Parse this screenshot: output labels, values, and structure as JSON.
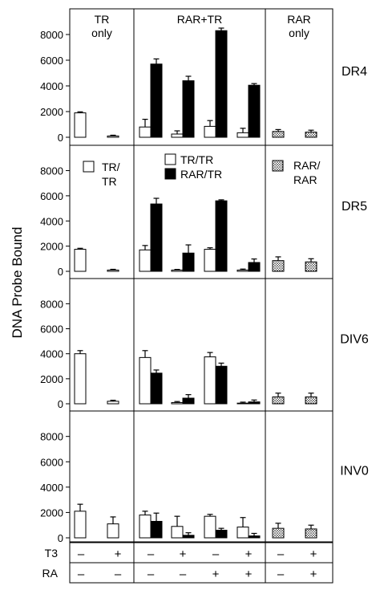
{
  "chart_data": {
    "type": "bar",
    "ylabel": "DNA Probe Bound",
    "ylim": [
      0,
      9500
    ],
    "yticks": [
      0,
      2000,
      4000,
      6000,
      8000
    ],
    "yticklabels": [
      "0",
      "2000",
      "4000",
      "6000",
      "8000"
    ],
    "groups": [
      "TR only",
      "RAR+TR",
      "RAR only"
    ],
    "group_labels": [
      {
        "line1": "TR",
        "line2": "only"
      },
      {
        "line1": "RAR+TR",
        "line2": ""
      },
      {
        "line1": "RAR",
        "line2": "only"
      }
    ],
    "conditions": {
      "row_labels": [
        "T3",
        "RA"
      ],
      "T3": [
        "–",
        "+",
        "–",
        "+",
        "–",
        "+",
        "–",
        "+"
      ],
      "RA": [
        "–",
        "–",
        "–",
        "–",
        "+",
        "+",
        "–",
        "+"
      ]
    },
    "legend": {
      "tr_tr_single": "TR/\nTR",
      "tr_tr": "TR/TR",
      "rar_tr": "RAR/TR",
      "rar_rar": "RAR/\nRAR"
    },
    "series_colors": {
      "TR/TR": "#ffffff",
      "RAR/TR": "#000000",
      "RAR/RAR": "dotted"
    },
    "panels": [
      {
        "label": "DR4",
        "tr_only": [
          [
            1900,
            80
          ],
          [
            100,
            60
          ]
        ],
        "rar_tr": [
          {
            "TR/TR": [
              800,
              600
            ],
            "RAR/TR": [
              5700,
              400
            ]
          },
          {
            "TR/TR": [
              250,
              250
            ],
            "RAR/TR": [
              4400,
              350
            ]
          },
          {
            "TR/TR": [
              850,
              450
            ],
            "RAR/TR": [
              8300,
              200
            ]
          },
          {
            "TR/TR": [
              350,
              350
            ],
            "RAR/TR": [
              4050,
              130
            ]
          }
        ],
        "rar_only": [
          [
            450,
            150
          ],
          [
            400,
            150
          ]
        ]
      },
      {
        "label": "DR5",
        "tr_only": [
          [
            1750,
            80
          ],
          [
            100,
            60
          ]
        ],
        "rar_tr": [
          {
            "TR/TR": [
              1700,
              350
            ],
            "RAR/TR": [
              5350,
              450
            ]
          },
          {
            "TR/TR": [
              100,
              50
            ],
            "RAR/TR": [
              1450,
              650
            ]
          },
          {
            "TR/TR": [
              1750,
              120
            ],
            "RAR/TR": [
              5600,
              80
            ]
          },
          {
            "TR/TR": [
              100,
              80
            ],
            "RAR/TR": [
              700,
              280
            ]
          }
        ],
        "rar_only": [
          [
            850,
            300
          ],
          [
            750,
            250
          ]
        ]
      },
      {
        "label": "DIV6",
        "tr_only": [
          [
            4000,
            250
          ],
          [
            200,
            80
          ]
        ],
        "rar_tr": [
          {
            "TR/TR": [
              3700,
              550
            ],
            "RAR/TR": [
              2450,
              250
            ]
          },
          {
            "TR/TR": [
              100,
              80
            ],
            "RAR/TR": [
              450,
              280
            ]
          },
          {
            "TR/TR": [
              3750,
              350
            ],
            "RAR/TR": [
              3000,
              250
            ]
          },
          {
            "TR/TR": [
              50,
              80
            ],
            "RAR/TR": [
              150,
              150
            ]
          }
        ],
        "rar_only": [
          [
            550,
            300
          ],
          [
            550,
            300
          ]
        ]
      },
      {
        "label": "INV0",
        "tr_only": [
          [
            2100,
            550
          ],
          [
            1100,
            550
          ]
        ],
        "rar_tr": [
          {
            "TR/TR": [
              1800,
              300
            ],
            "RAR/TR": [
              1300,
              650
            ]
          },
          {
            "TR/TR": [
              900,
              800
            ],
            "RAR/TR": [
              200,
              200
            ]
          },
          {
            "TR/TR": [
              1700,
              150
            ],
            "RAR/TR": [
              600,
              150
            ]
          },
          {
            "TR/TR": [
              850,
              750
            ],
            "RAR/TR": [
              150,
              200
            ]
          }
        ],
        "rar_only": [
          [
            750,
            400
          ],
          [
            700,
            300
          ]
        ]
      }
    ]
  }
}
